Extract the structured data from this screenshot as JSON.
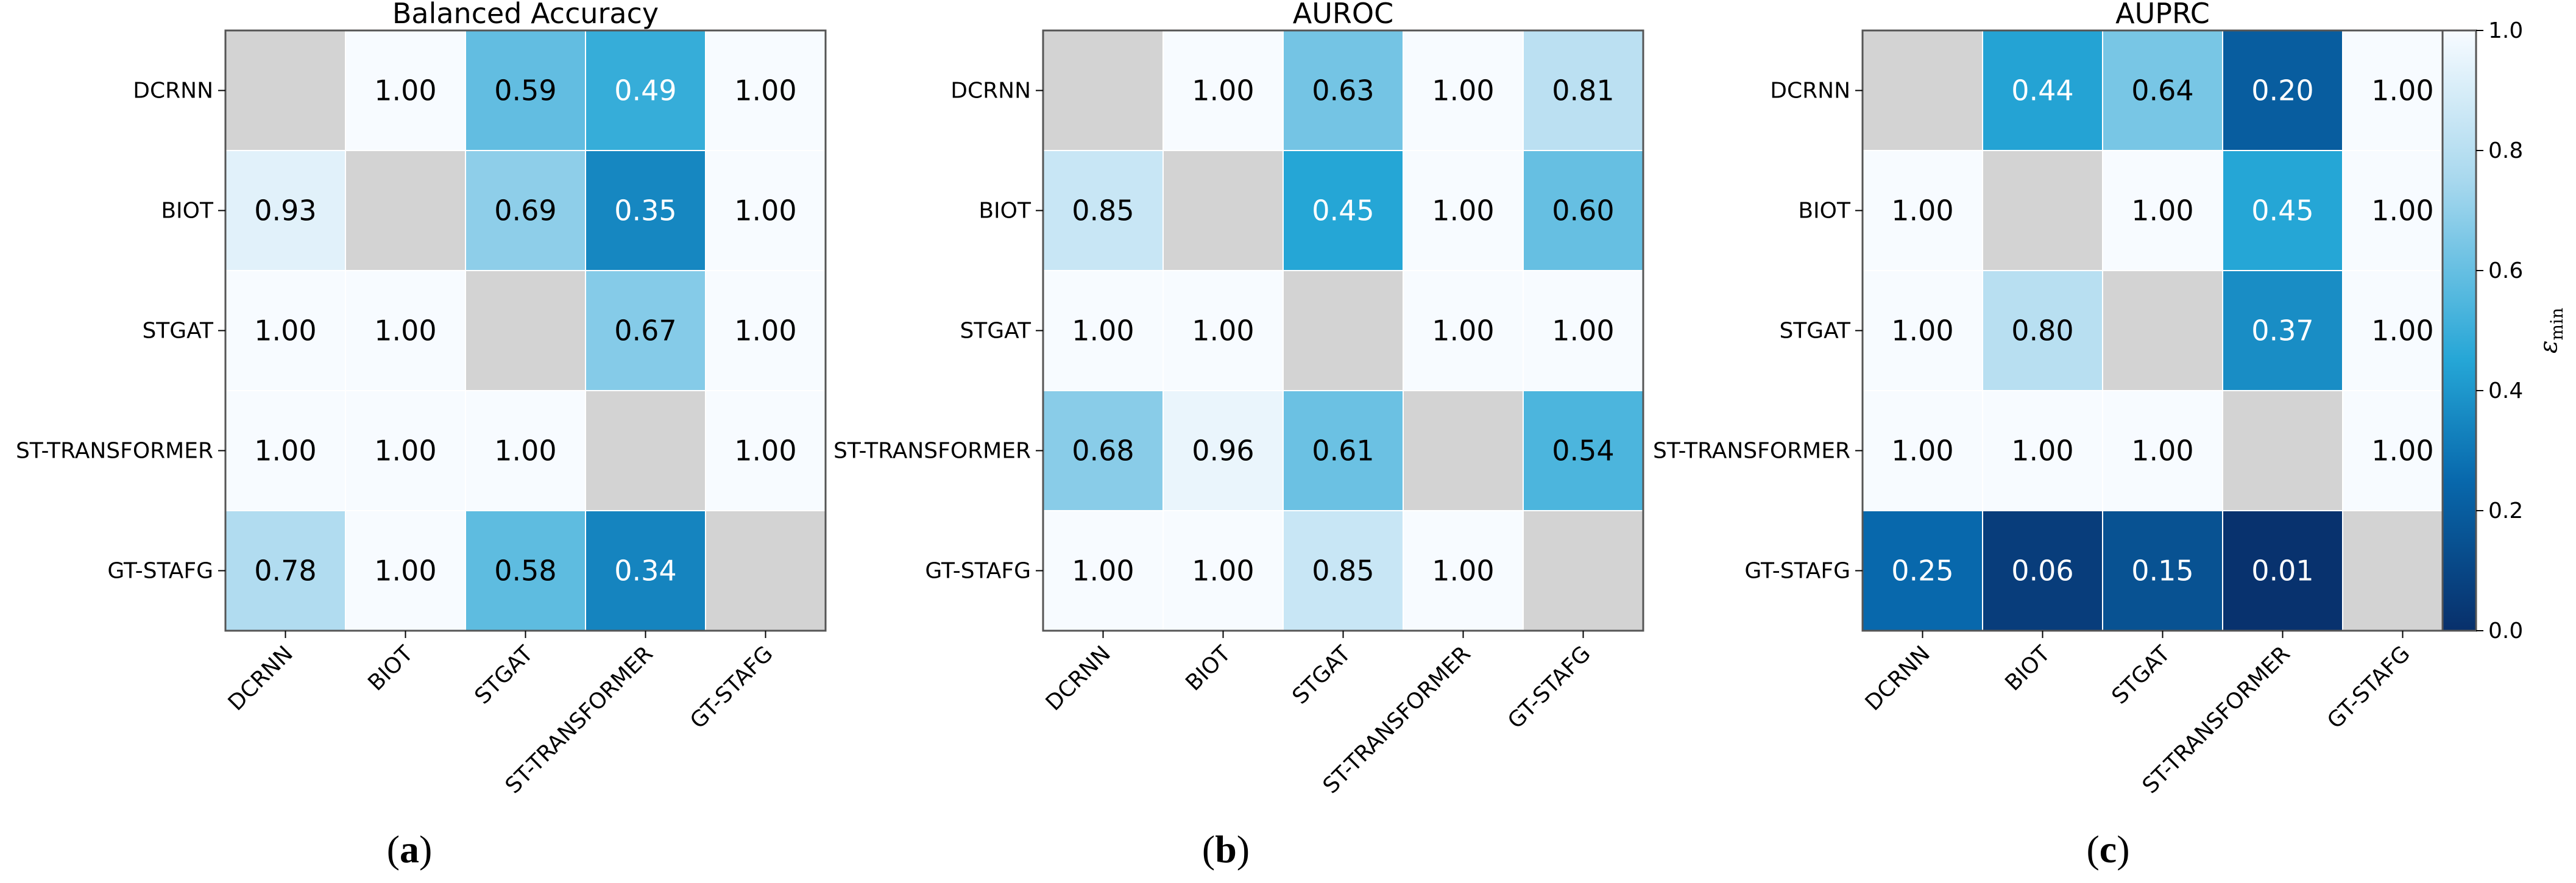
{
  "chart_data": [
    {
      "type": "heatmap",
      "title": "Balanced Accuracy",
      "subfigure": "a",
      "rows": [
        "DCRNN",
        "BIOT",
        "STGAT",
        "ST-TRANSFORMER",
        "GT-STAFG"
      ],
      "cols": [
        "DCRNN",
        "BIOT",
        "STGAT",
        "ST-TRANSFORMER",
        "GT-STAFG"
      ],
      "values": [
        [
          null,
          1.0,
          0.59,
          0.49,
          1.0
        ],
        [
          0.93,
          null,
          0.69,
          0.35,
          1.0
        ],
        [
          1.0,
          1.0,
          null,
          0.67,
          1.0
        ],
        [
          1.0,
          1.0,
          1.0,
          null,
          1.0
        ],
        [
          0.78,
          1.0,
          0.58,
          0.34,
          null
        ]
      ],
      "vmin": 0.0,
      "vmax": 1.0
    },
    {
      "type": "heatmap",
      "title": "AUROC",
      "subfigure": "b",
      "rows": [
        "DCRNN",
        "BIOT",
        "STGAT",
        "ST-TRANSFORMER",
        "GT-STAFG"
      ],
      "cols": [
        "DCRNN",
        "BIOT",
        "STGAT",
        "ST-TRANSFORMER",
        "GT-STAFG"
      ],
      "values": [
        [
          null,
          1.0,
          0.63,
          1.0,
          0.81
        ],
        [
          0.85,
          null,
          0.45,
          1.0,
          0.6
        ],
        [
          1.0,
          1.0,
          null,
          1.0,
          1.0
        ],
        [
          0.68,
          0.96,
          0.61,
          null,
          0.54
        ],
        [
          1.0,
          1.0,
          0.85,
          1.0,
          null
        ]
      ],
      "vmin": 0.0,
      "vmax": 1.0
    },
    {
      "type": "heatmap",
      "title": "AUPRC",
      "subfigure": "c",
      "rows": [
        "DCRNN",
        "BIOT",
        "STGAT",
        "ST-TRANSFORMER",
        "GT-STAFG"
      ],
      "cols": [
        "DCRNN",
        "BIOT",
        "STGAT",
        "ST-TRANSFORMER",
        "GT-STAFG"
      ],
      "values": [
        [
          null,
          0.44,
          0.64,
          0.2,
          1.0
        ],
        [
          1.0,
          null,
          1.0,
          0.45,
          1.0
        ],
        [
          1.0,
          0.8,
          null,
          0.37,
          1.0
        ],
        [
          1.0,
          1.0,
          1.0,
          null,
          1.0
        ],
        [
          0.25,
          0.06,
          0.15,
          0.01,
          null
        ]
      ],
      "vmin": 0.0,
      "vmax": 1.0
    }
  ],
  "colorbar": {
    "label_base": "ε",
    "label_sub": "min",
    "ticks": [
      "0.0",
      "0.2",
      "0.4",
      "0.6",
      "0.8",
      "1.0"
    ],
    "tick_values": [
      0.0,
      0.2,
      0.4,
      0.6,
      0.8,
      1.0
    ],
    "colors": {
      "low": "#08306b",
      "mid_low": "#0868ac",
      "mid": "#25a6d6",
      "mid_high": "#a8d8ee",
      "high": "#f7fbff",
      "diagonal": "#d3d3d3"
    }
  },
  "subfigure_labels": [
    "(a)",
    "(b)",
    "(c)"
  ]
}
